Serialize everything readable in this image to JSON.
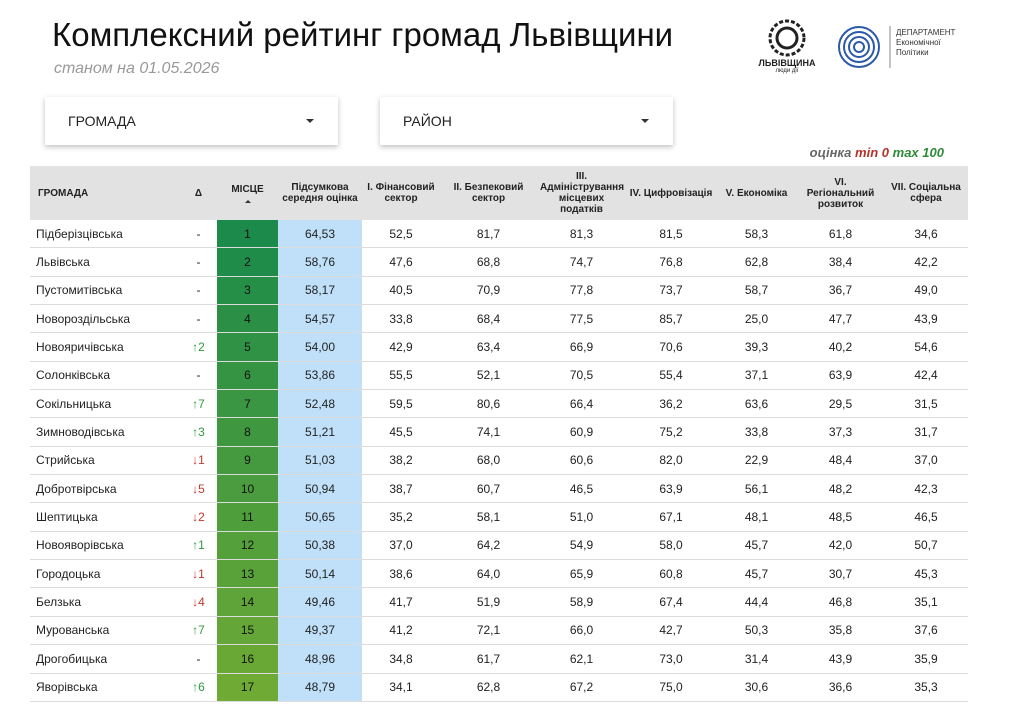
{
  "header": {
    "title": "Комплексний рейтинг громад Львівщини",
    "subtitle": "станом на 01.05.2026",
    "logo1": {
      "name": "ЛЬВІВЩИНА",
      "tagline": "люди дії"
    },
    "logo2": {
      "lines": [
        "ДЕПАРТАМЕНТ",
        "Економічної",
        "Політики"
      ]
    }
  },
  "filters": [
    "ГРОМАДА",
    "РАЙОН"
  ],
  "legend": {
    "label": "оцінка",
    "min_label": "min",
    "min": "0",
    "max_label": "max",
    "max": "100"
  },
  "table": {
    "columns": [
      "ГРОМАДА",
      "Δ",
      "МІСЦЕ",
      "Підсумкова середня оцінка",
      "I. Фінансовий сектор",
      "II. Безпековий сектор",
      "III. Адміністрування місцевих податків",
      "IV. Цифровізація",
      "V. Економіка",
      "VI. Регіональний розвиток",
      "VII. Соціальна сфера"
    ],
    "rows": [
      [
        "Підберізцівська",
        "-",
        "1",
        "64,53",
        "52,5",
        "81,7",
        "81,3",
        "81,5",
        "58,3",
        "61,8",
        "34,6"
      ],
      [
        "Львівська",
        "-",
        "2",
        "58,76",
        "47,6",
        "68,8",
        "74,7",
        "76,8",
        "62,8",
        "38,4",
        "42,2"
      ],
      [
        "Пустомитівська",
        "-",
        "3",
        "58,17",
        "40,5",
        "70,9",
        "77,8",
        "73,7",
        "58,7",
        "36,7",
        "49,0"
      ],
      [
        "Новороздільська",
        "-",
        "4",
        "54,57",
        "33,8",
        "68,4",
        "77,5",
        "85,7",
        "25,0",
        "47,7",
        "43,9"
      ],
      [
        "Новояричівська",
        "↑2",
        "5",
        "54,00",
        "42,9",
        "63,4",
        "66,9",
        "70,6",
        "39,3",
        "40,2",
        "54,6"
      ],
      [
        "Солонківська",
        "-",
        "6",
        "53,86",
        "55,5",
        "52,1",
        "70,5",
        "55,4",
        "37,1",
        "63,9",
        "42,4"
      ],
      [
        "Сокільницька",
        "↑7",
        "7",
        "52,48",
        "59,5",
        "80,6",
        "66,4",
        "36,2",
        "63,6",
        "29,5",
        "31,5"
      ],
      [
        "Зимноводівська",
        "↑3",
        "8",
        "51,21",
        "45,5",
        "74,1",
        "60,9",
        "75,2",
        "33,8",
        "37,3",
        "31,7"
      ],
      [
        "Стрийська",
        "↓1",
        "9",
        "51,03",
        "38,2",
        "68,0",
        "60,6",
        "82,0",
        "22,9",
        "48,4",
        "37,0"
      ],
      [
        "Добротвірська",
        "↓5",
        "10",
        "50,94",
        "38,7",
        "60,7",
        "46,5",
        "63,9",
        "56,1",
        "48,2",
        "42,3"
      ],
      [
        "Шептицька",
        "↓2",
        "11",
        "50,65",
        "35,2",
        "58,1",
        "51,0",
        "67,1",
        "48,1",
        "48,5",
        "46,5"
      ],
      [
        "Новояворівська",
        "↑1",
        "12",
        "50,38",
        "37,0",
        "64,2",
        "54,9",
        "58,0",
        "45,7",
        "42,0",
        "50,7"
      ],
      [
        "Городоцька",
        "↓1",
        "13",
        "50,14",
        "38,6",
        "64,0",
        "65,9",
        "60,8",
        "45,7",
        "30,7",
        "45,3"
      ],
      [
        "Белзька",
        "↓4",
        "14",
        "49,46",
        "41,7",
        "51,9",
        "58,9",
        "67,4",
        "44,4",
        "46,8",
        "35,1"
      ],
      [
        "Мурованська",
        "↑7",
        "15",
        "49,37",
        "41,2",
        "72,1",
        "66,0",
        "42,7",
        "50,3",
        "35,8",
        "37,6"
      ],
      [
        "Дрогобицька",
        "-",
        "16",
        "48,96",
        "34,8",
        "61,7",
        "62,1",
        "73,0",
        "31,4",
        "43,9",
        "35,9"
      ],
      [
        "Яворівська",
        "↑6",
        "17",
        "48,79",
        "34,1",
        "62,8",
        "67,2",
        "75,0",
        "30,6",
        "36,6",
        "35,3"
      ]
    ]
  }
}
